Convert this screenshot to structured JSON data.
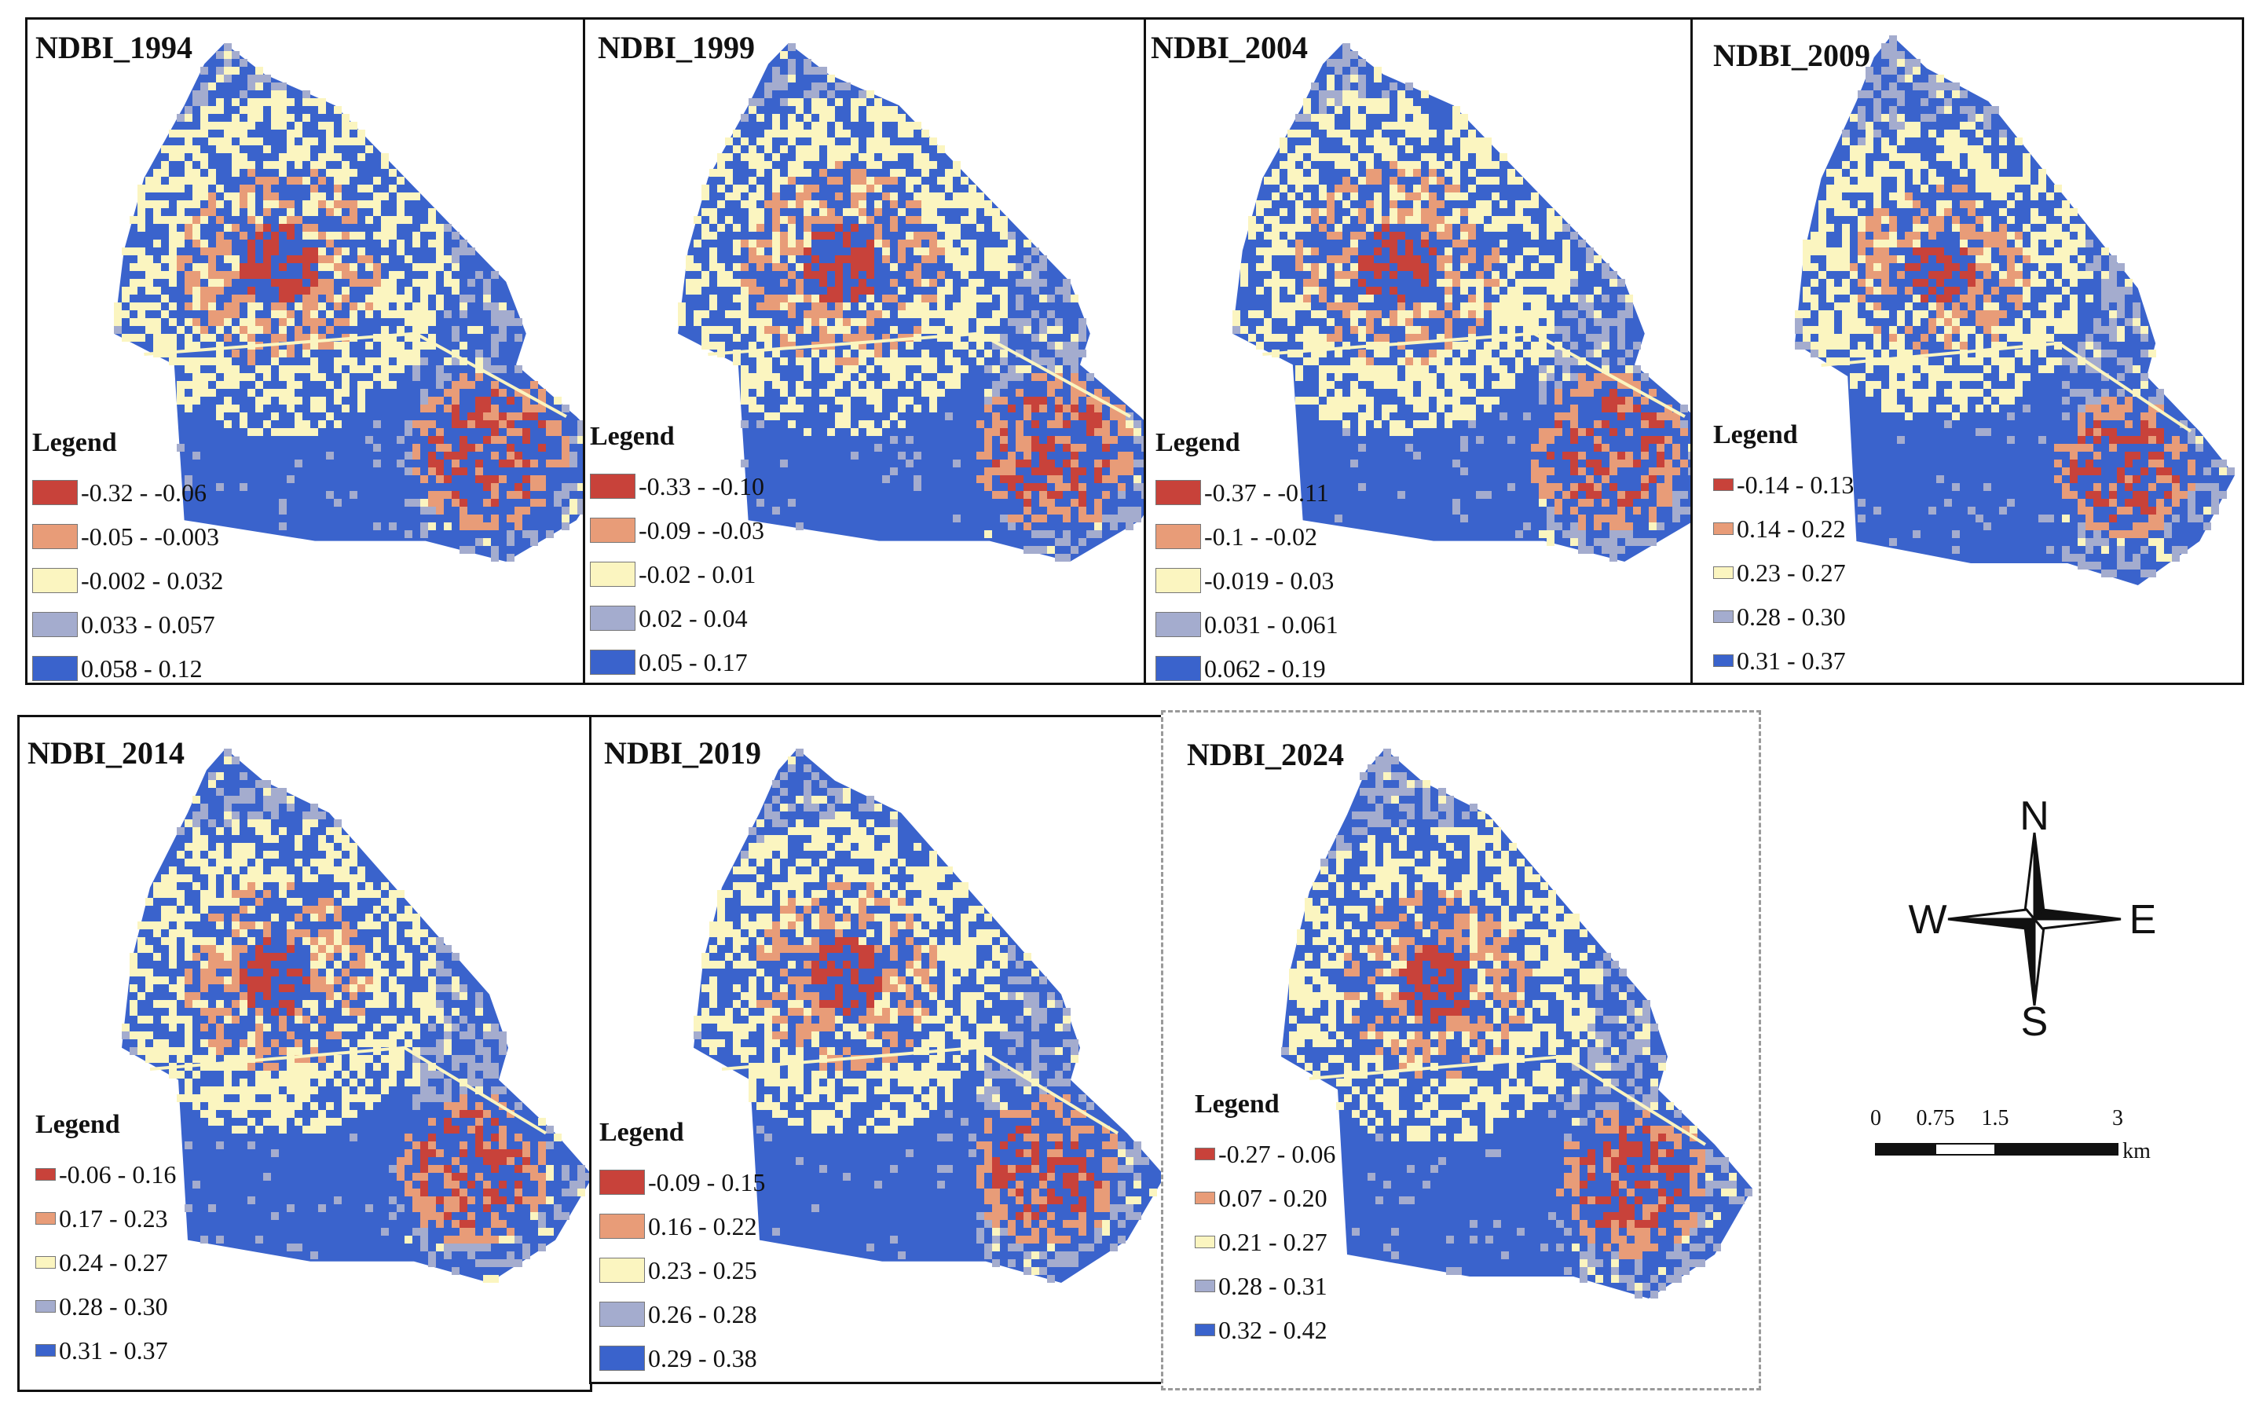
{
  "colors": {
    "c1": "#c8423a",
    "c2": "#e89c78",
    "c3": "#fbf5c0",
    "c4": "#a4acce",
    "c5": "#3a63cc"
  },
  "panels": [
    {
      "title": "NDBI_1994",
      "legend_heading": "Legend",
      "classes": [
        "-0.32 - -0.06",
        "-0.05 - -0.003",
        "-0.002 - 0.032",
        "0.033 - 0.057",
        "0.058 - 0.12"
      ]
    },
    {
      "title": "NDBI_1999",
      "legend_heading": "Legend",
      "classes": [
        "-0.33 - -0.10",
        "-0.09 - -0.03",
        "-0.02 - 0.01",
        "0.02 - 0.04",
        "0.05 - 0.17"
      ]
    },
    {
      "title": "NDBI_2004",
      "legend_heading": "Legend",
      "classes": [
        "-0.37 - -0.11",
        "-0.1 - -0.02",
        "-0.019 - 0.03",
        "0.031 - 0.061",
        "0.062 - 0.19"
      ]
    },
    {
      "title": "NDBI_2009",
      "legend_heading": "Legend",
      "classes": [
        "-0.14 - 0.13",
        "0.14 - 0.22",
        "0.23 - 0.27",
        "0.28 - 0.30",
        "0.31 - 0.37"
      ]
    },
    {
      "title": "NDBI_2014",
      "legend_heading": "Legend",
      "classes": [
        "-0.06 - 0.16",
        "0.17 - 0.23",
        "0.24 - 0.27",
        "0.28 - 0.30",
        "0.31 - 0.37"
      ]
    },
    {
      "title": "NDBI_2019",
      "legend_heading": "Legend",
      "classes": [
        "-0.09 - 0.15",
        "0.16 - 0.22",
        "0.23 - 0.25",
        "0.26 - 0.28",
        "0.29 - 0.38"
      ]
    },
    {
      "title": "NDBI_2024",
      "legend_heading": "Legend",
      "classes": [
        "-0.27 - 0.06",
        "0.07 - 0.20",
        "0.21 - 0.27",
        "0.28 - 0.31",
        "0.32 - 0.42"
      ]
    }
  ],
  "compass": {
    "north": "N",
    "south": "S",
    "east": "E",
    "west": "W"
  },
  "scale": {
    "ticks": [
      "0",
      "0.75",
      "1.5",
      "3"
    ],
    "unit": "km"
  }
}
